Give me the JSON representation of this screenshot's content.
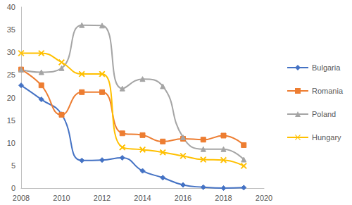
{
  "chart_data": {
    "type": "line",
    "x": [
      2008,
      2009,
      2010,
      2011,
      2012,
      2013,
      2014,
      2015,
      2016,
      2017,
      2018,
      2019
    ],
    "series": [
      {
        "name": "Bulgaria",
        "color": "#4472c4",
        "marker": "diamond",
        "line_style": "smooth",
        "values": [
          22.7,
          19.6,
          16.3,
          6.1,
          6.2,
          6.7,
          3.8,
          2.3,
          0.7,
          0.2,
          0.0,
          0.1
        ]
      },
      {
        "name": "Romania",
        "color": "#ed7d31",
        "marker": "square",
        "line_style": "smooth",
        "values": [
          26.2,
          22.7,
          16.2,
          21.2,
          21.2,
          12.1,
          11.7,
          10.3,
          10.9,
          10.7,
          11.6,
          9.5
        ]
      },
      {
        "name": "Poland",
        "color": "#a5a5a5",
        "marker": "triangle",
        "line_style": "smooth",
        "values": [
          26.2,
          25.6,
          26.5,
          36.0,
          35.9,
          22.0,
          24.1,
          22.5,
          11.2,
          8.6,
          8.6,
          6.3
        ]
      },
      {
        "name": "Hungary",
        "color": "#ffc000",
        "marker": "x",
        "line_style": "smooth",
        "values": [
          29.8,
          29.8,
          27.8,
          25.2,
          25.2,
          9.0,
          8.5,
          7.9,
          7.1,
          6.3,
          6.2,
          4.9
        ]
      }
    ],
    "xlim": [
      2008,
      2020
    ],
    "xticks": [
      2008,
      2010,
      2012,
      2014,
      2016,
      2018,
      2020
    ],
    "ylim": [
      0,
      40
    ],
    "yticks": [
      0,
      5,
      10,
      15,
      20,
      25,
      30,
      35,
      40
    ],
    "grid": false,
    "legend": "right"
  }
}
